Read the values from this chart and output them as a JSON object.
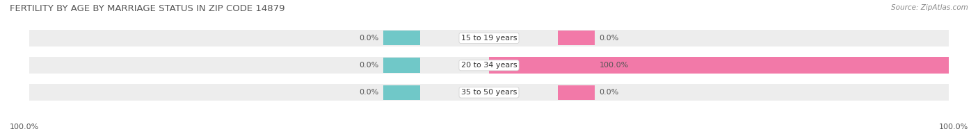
{
  "title": "FERTILITY BY AGE BY MARRIAGE STATUS IN ZIP CODE 14879",
  "source": "Source: ZipAtlas.com",
  "categories": [
    "15 to 19 years",
    "20 to 34 years",
    "35 to 50 years"
  ],
  "married_values": [
    0.0,
    0.0,
    0.0
  ],
  "unmarried_values": [
    0.0,
    100.0,
    0.0
  ],
  "married_left_labels": [
    "0.0%",
    "0.0%",
    "0.0%"
  ],
  "unmarried_right_labels": [
    "0.0%",
    "100.0%",
    "0.0%"
  ],
  "left_axis_label": "100.0%",
  "right_axis_label": "100.0%",
  "married_color": "#70C8C8",
  "unmarried_color": "#F279A8",
  "bar_bg_color": "#EDEDED",
  "title_fontsize": 9.5,
  "source_fontsize": 7.5,
  "label_fontsize": 8,
  "cat_fontsize": 8,
  "legend_fontsize": 8.5
}
